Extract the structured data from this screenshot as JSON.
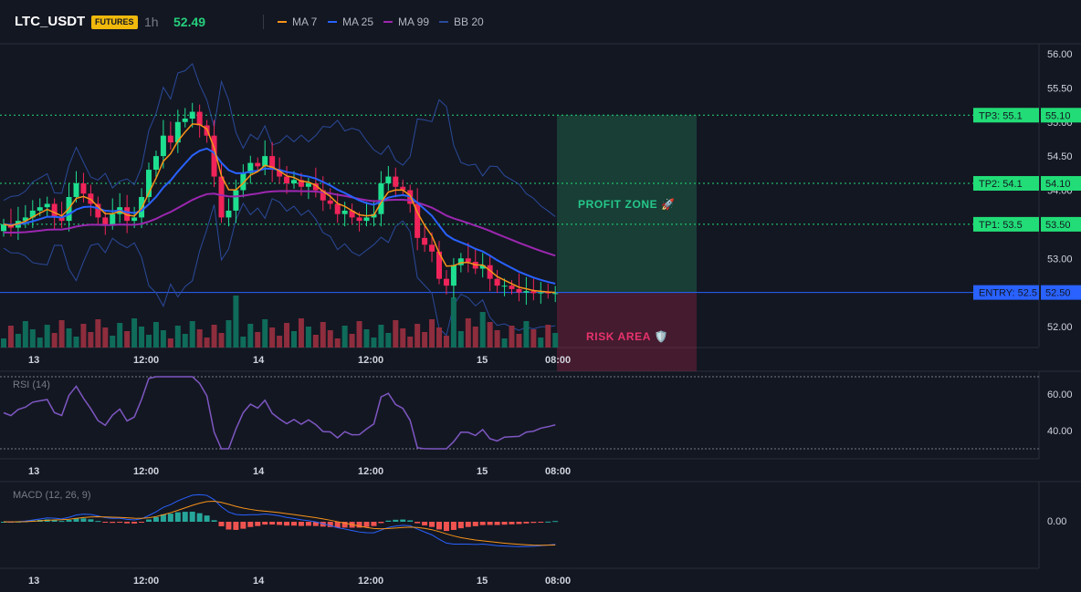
{
  "header": {
    "symbol": "LTC_USDT",
    "badge": "FUTURES",
    "interval": "1h",
    "price": "52.49"
  },
  "legend": [
    {
      "label": "MA 7",
      "color": "#f7931a"
    },
    {
      "label": "MA 25",
      "color": "#2962ff"
    },
    {
      "label": "MA 99",
      "color": "#9c27b0"
    },
    {
      "label": "BB 20",
      "color": "#2a4a9a"
    }
  ],
  "chart_data": [
    {
      "type": "candlestick",
      "ylim": [
        51.6,
        56.1
      ],
      "price_ticks": [
        "56.00",
        "55.50",
        "55.00",
        "54.50",
        "54.00",
        "53.50",
        "53.00",
        "52.50",
        "52.00"
      ],
      "time_labels": [
        "13",
        "12:00",
        "14",
        "12:00",
        "15",
        "08:00"
      ],
      "levels": [
        {
          "tag": "TP3: 55.1",
          "axis": "55.10",
          "value": 55.1,
          "color": "#22dd77"
        },
        {
          "tag": "TP2: 54.1",
          "axis": "54.10",
          "value": 54.1,
          "color": "#22dd77"
        },
        {
          "tag": "TP1: 53.5",
          "axis": "53.50",
          "value": 53.5,
          "color": "#22dd77"
        },
        {
          "tag": "ENTRY: 52.5",
          "axis": "52.50",
          "value": 52.5,
          "color": "#2962ff"
        }
      ],
      "zones": {
        "profit_label": "PROFIT ZONE 🚀",
        "risk_label": "RISK AREA 🛡️"
      }
    },
    {
      "type": "line",
      "title": "RSI (14)",
      "y_ticks": [
        "60.00",
        "40.00"
      ],
      "time_labels": [
        "13",
        "12:00",
        "14",
        "12:00",
        "15",
        "08:00"
      ]
    },
    {
      "type": "bar",
      "title": "MACD (12, 26, 9)",
      "y_ticks": [
        "0.00"
      ],
      "time_labels": [
        "13",
        "12:00",
        "14",
        "12:00",
        "15",
        "08:00"
      ]
    }
  ]
}
